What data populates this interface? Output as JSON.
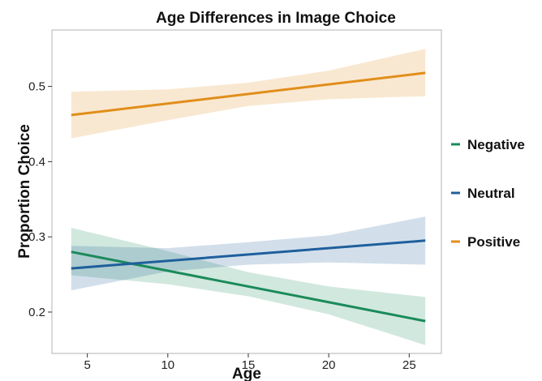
{
  "chart_data": {
    "type": "line",
    "title": "Age Differences in Image Choice",
    "xlabel": "Age",
    "ylabel": "Proportion Choice",
    "xlim": [
      2.8,
      27.0
    ],
    "ylim": [
      0.145,
      0.575
    ],
    "x_ticks": [
      5,
      10,
      15,
      20,
      25
    ],
    "x_tick_labels": [
      "5",
      "10",
      "15",
      "20",
      "25"
    ],
    "y_ticks": [
      0.2,
      0.3,
      0.4,
      0.5
    ],
    "y_tick_labels": [
      "0.2",
      "0.3",
      "0.4",
      "0.5"
    ],
    "grid": false,
    "legend_position": "right",
    "series": [
      {
        "name": "Negative",
        "color": "#1b8a5a",
        "x": [
          4,
          26
        ],
        "y": [
          0.28,
          0.188
        ],
        "ci_x": [
          4,
          10,
          15,
          20,
          26
        ],
        "ci_lower": [
          0.249,
          0.237,
          0.221,
          0.197,
          0.156
        ],
        "ci_upper": [
          0.312,
          0.281,
          0.253,
          0.234,
          0.22
        ]
      },
      {
        "name": "Neutral",
        "color": "#1f5f9c",
        "x": [
          4,
          26
        ],
        "y": [
          0.258,
          0.295
        ],
        "ci_x": [
          4,
          10,
          15,
          20,
          26
        ],
        "ci_lower": [
          0.229,
          0.254,
          0.263,
          0.266,
          0.263
        ],
        "ci_upper": [
          0.288,
          0.285,
          0.293,
          0.302,
          0.327
        ]
      },
      {
        "name": "Positive",
        "color": "#e08e1a",
        "x": [
          4,
          26
        ],
        "y": [
          0.462,
          0.518
        ],
        "ci_x": [
          4,
          10,
          15,
          20,
          26
        ],
        "ci_lower": [
          0.431,
          0.455,
          0.474,
          0.483,
          0.487
        ],
        "ci_upper": [
          0.493,
          0.496,
          0.505,
          0.521,
          0.55
        ]
      }
    ]
  }
}
